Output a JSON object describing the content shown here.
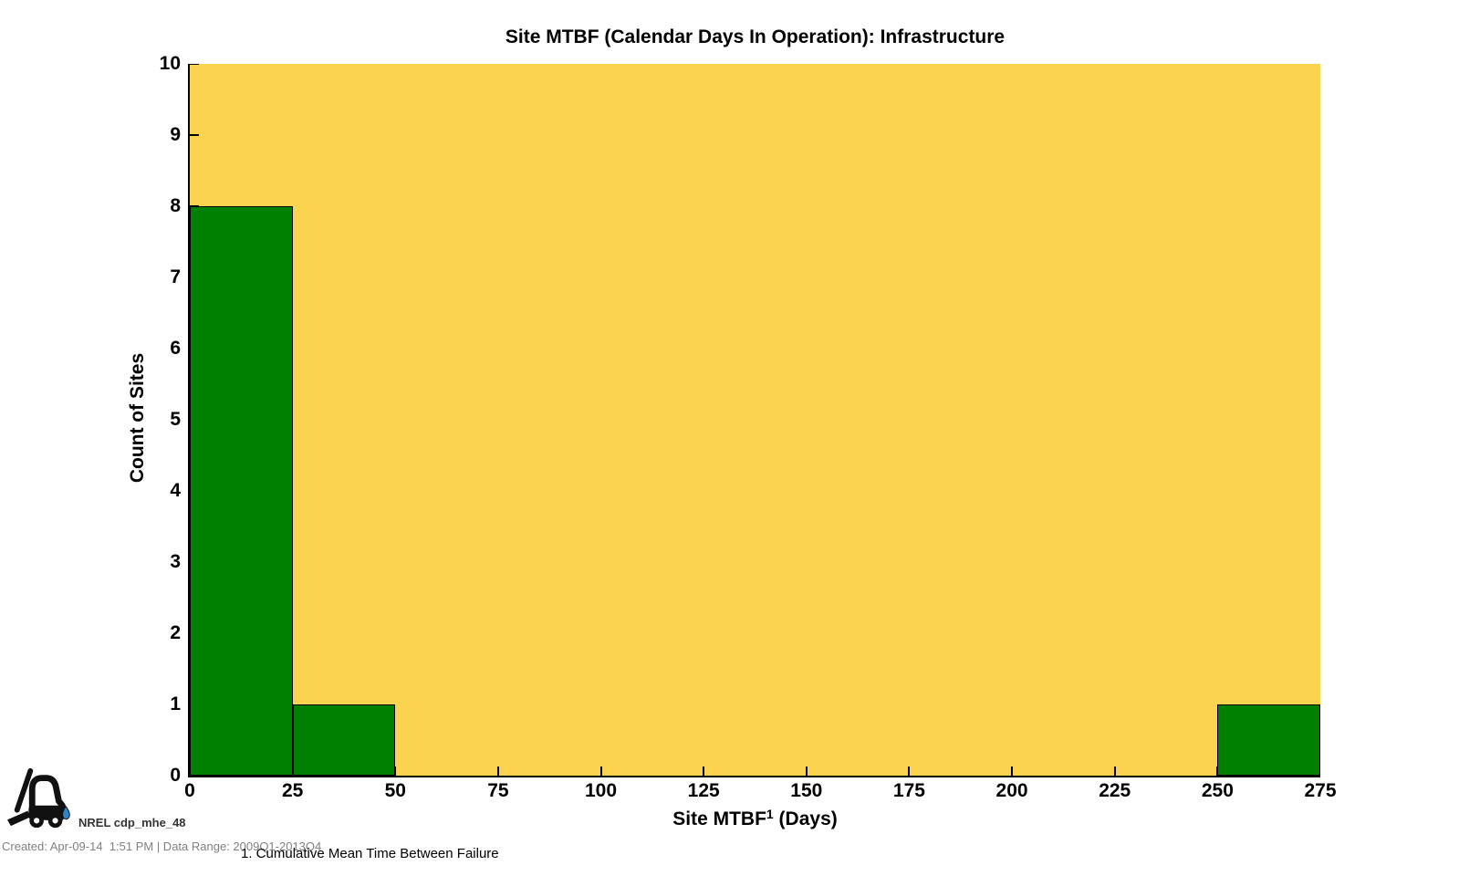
{
  "title": "Site MTBF (Calendar Days In Operation): Infrastructure",
  "chart_data": {
    "type": "bar",
    "subtype": "histogram",
    "title": "Site MTBF (Calendar Days In Operation): Infrastructure",
    "xlabel": {
      "base": "Site MTBF",
      "superscript": "1",
      "rest": " (Days)"
    },
    "ylabel": "Count of Sites",
    "xlim": [
      0,
      275
    ],
    "ylim": [
      0,
      10
    ],
    "x_ticks": [
      0,
      25,
      50,
      75,
      100,
      125,
      150,
      175,
      200,
      225,
      250,
      275
    ],
    "y_ticks": [
      0,
      1,
      2,
      3,
      4,
      5,
      6,
      7,
      8,
      9,
      10
    ],
    "bin_width": 25,
    "bins": [
      {
        "x0": 0,
        "x1": 25,
        "count": 8
      },
      {
        "x0": 25,
        "x1": 50,
        "count": 1
      },
      {
        "x0": 250,
        "x1": 275,
        "count": 1
      }
    ],
    "grid": false,
    "legend": null,
    "colors": {
      "bar_fill": "#008000",
      "bar_outline": "#000000",
      "plot_background": "#FCD34F",
      "axis": "#000000",
      "page_background": "#FFFFFF"
    }
  },
  "footer": {
    "logo_icon": "forklift-icon",
    "droplet_icon": "water-droplet-icon",
    "watermark": "NREL cdp_mhe_48",
    "created_line": "Created: Apr-09-14  1:51 PM | Data Range: 2009Q1-2013Q4",
    "footnote": "1. Cumulative Mean Time Between Failure"
  }
}
